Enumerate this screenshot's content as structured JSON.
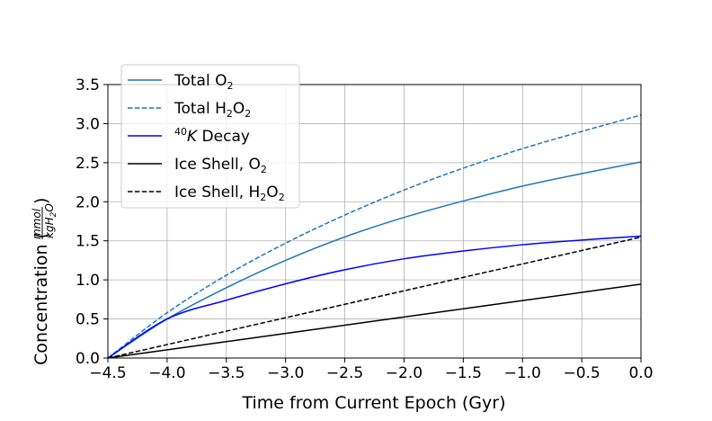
{
  "chart_data": {
    "type": "line",
    "title": "",
    "xlabel": "Time from Current Epoch (Gyr)",
    "ylabel": {
      "text": "Concentration (",
      "unit_numerator": "mmol",
      "unit_denominator": "kgH",
      "unit_denominator_sub": "2",
      "unit_denominator_tail": "O",
      "close": ")"
    },
    "xlim": [
      -4.5,
      0.0
    ],
    "ylim": [
      0.0,
      3.5
    ],
    "xticks": [
      "−4.5",
      "−4.0",
      "−3.5",
      "−3.0",
      "−2.5",
      "−2.0",
      "−1.5",
      "−1.0",
      "−0.5",
      "0.0"
    ],
    "yticks": [
      "0.0",
      "0.5",
      "1.0",
      "1.5",
      "2.0",
      "2.5",
      "3.0",
      "3.5"
    ],
    "xtick_values": [
      -4.5,
      -4.0,
      -3.5,
      -3.0,
      -2.5,
      -2.0,
      -1.5,
      -1.0,
      -0.5,
      0.0
    ],
    "ytick_values": [
      0.0,
      0.5,
      1.0,
      1.5,
      2.0,
      2.5,
      3.0,
      3.5
    ],
    "grid": true,
    "legend_position": "top-left",
    "x": [
      -4.5,
      -4.0,
      -3.5,
      -3.0,
      -2.5,
      -2.0,
      -1.5,
      -1.0,
      -0.5,
      0.0
    ],
    "series": [
      {
        "name": "Total O2",
        "legend": {
          "text": "Total O",
          "sub": "2"
        },
        "color": "#1f77b4",
        "style": "solid",
        "values": [
          0.0,
          0.5,
          0.9,
          1.25,
          1.55,
          1.8,
          2.01,
          2.2,
          2.36,
          2.51
        ]
      },
      {
        "name": "Total H2O2",
        "legend": {
          "text": "Total H",
          "sub": "2",
          "text2": "O",
          "sub2": "2"
        },
        "color": "#1f77b4",
        "style": "dashed",
        "values": [
          0.0,
          0.58,
          1.06,
          1.47,
          1.83,
          2.15,
          2.43,
          2.68,
          2.9,
          3.11
        ]
      },
      {
        "name": "40K Decay",
        "legend": {
          "sup": "40",
          "italic": "K",
          "text": " Decay"
        },
        "color": "#0000ff",
        "style": "solid",
        "values": [
          0.0,
          0.5,
          0.74,
          0.95,
          1.13,
          1.27,
          1.37,
          1.45,
          1.51,
          1.56
        ]
      },
      {
        "name": "Ice Shell, O2",
        "legend": {
          "text": "Ice Shell, O",
          "sub": "2"
        },
        "color": "#000000",
        "style": "solid",
        "values": [
          0.0,
          0.105,
          0.21,
          0.315,
          0.42,
          0.525,
          0.63,
          0.735,
          0.84,
          0.945
        ]
      },
      {
        "name": "Ice Shell, H2O2",
        "legend": {
          "text": "Ice Shell, H",
          "sub": "2",
          "text2": "O",
          "sub2": "2"
        },
        "color": "#000000",
        "style": "dashed",
        "values": [
          0.0,
          0.172,
          0.344,
          0.516,
          0.688,
          0.86,
          1.032,
          1.204,
          1.376,
          1.548
        ]
      }
    ]
  }
}
